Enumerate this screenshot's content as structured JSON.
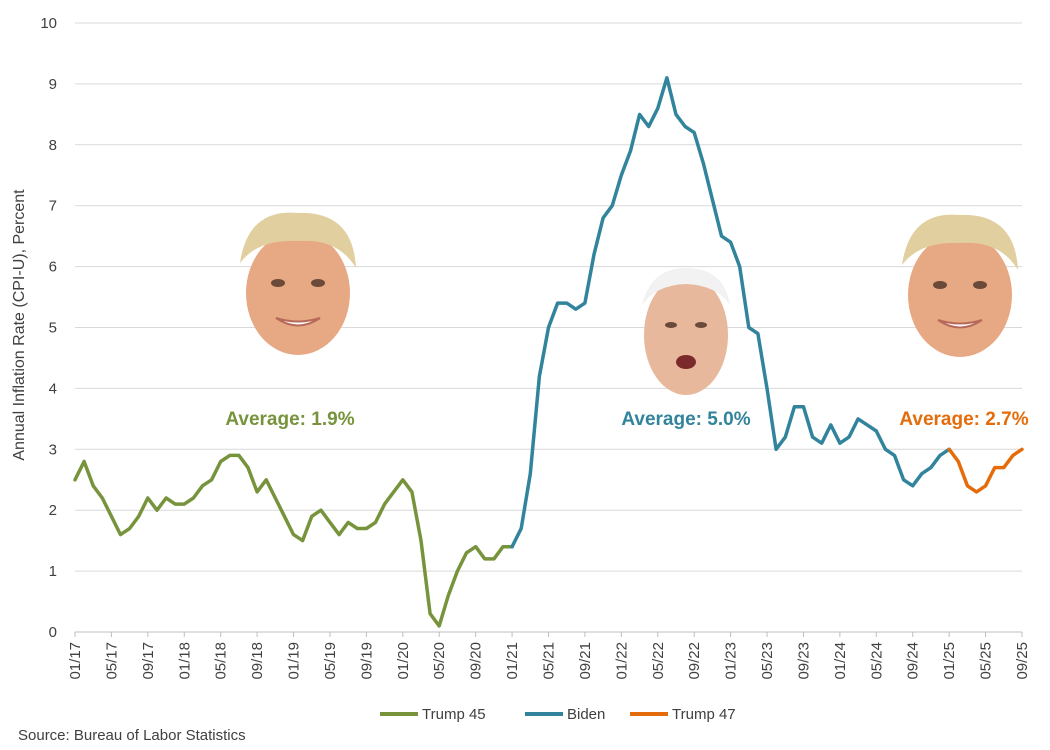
{
  "chart_data": {
    "type": "line",
    "title": "",
    "ylabel": "Annual Inflation Rate (CPI-U), Percent",
    "xlabel": "",
    "ylim": [
      0,
      10
    ],
    "yticks": [
      "0",
      "1",
      "2",
      "3",
      "4",
      "5",
      "6",
      "7",
      "8",
      "9",
      "10"
    ],
    "xticks": [
      "01/17",
      "05/17",
      "09/17",
      "01/18",
      "05/18",
      "09/18",
      "01/19",
      "05/19",
      "09/19",
      "01/20",
      "05/20",
      "09/20",
      "01/21",
      "05/21",
      "09/21",
      "01/22",
      "05/22",
      "09/22",
      "01/23",
      "05/23",
      "09/23",
      "01/24",
      "05/24",
      "09/24",
      "01/25",
      "05/25",
      "09/25"
    ],
    "grid": "horizontal",
    "legend": "bottom",
    "source": "Source: Bureau of Labor Statistics",
    "series": [
      {
        "name": "Trump 45",
        "color": "#77933c",
        "start": "01/17",
        "average_label": "Average: 1.9%",
        "values": [
          2.5,
          2.8,
          2.4,
          2.2,
          1.9,
          1.6,
          1.7,
          1.9,
          2.2,
          2.0,
          2.2,
          2.1,
          2.1,
          2.2,
          2.4,
          2.5,
          2.8,
          2.9,
          2.9,
          2.7,
          2.3,
          2.5,
          2.2,
          1.9,
          1.6,
          1.5,
          1.9,
          2.0,
          1.8,
          1.6,
          1.8,
          1.7,
          1.7,
          1.8,
          2.1,
          2.3,
          2.5,
          2.3,
          1.5,
          0.3,
          0.1,
          0.6,
          1.0,
          1.3,
          1.4,
          1.2,
          1.2,
          1.4,
          1.4
        ]
      },
      {
        "name": "Biden",
        "color": "#31849b",
        "start": "01/21",
        "average_label": "Average: 5.0%",
        "values": [
          1.4,
          1.7,
          2.6,
          4.2,
          5.0,
          5.4,
          5.4,
          5.3,
          5.4,
          6.2,
          6.8,
          7.0,
          7.5,
          7.9,
          8.5,
          8.3,
          8.6,
          9.1,
          8.5,
          8.3,
          8.2,
          7.7,
          7.1,
          6.5,
          6.4,
          6.0,
          5.0,
          4.9,
          4.0,
          3.0,
          3.2,
          3.7,
          3.7,
          3.2,
          3.1,
          3.4,
          3.1,
          3.2,
          3.5,
          3.4,
          3.3,
          3.0,
          2.9,
          2.5,
          2.4,
          2.6,
          2.7,
          2.9,
          3.0
        ]
      },
      {
        "name": "Trump 47",
        "color": "#e46c0a",
        "start": "01/25",
        "average_label": "Average: 2.7%",
        "values": [
          3.0,
          2.8,
          2.4,
          2.3,
          2.4,
          2.7,
          2.7,
          2.9,
          3.0
        ]
      }
    ]
  }
}
